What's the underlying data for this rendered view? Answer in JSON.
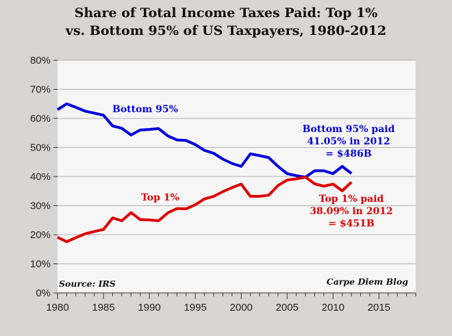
{
  "chart_data": {
    "type": "line",
    "title": "Share of Total Income Taxes Paid: Top 1% vs. Bottom 95% of US Taxpayers, 1980-2012",
    "title_lines": [
      "Share of Total Income Taxes Paid: Top 1%",
      "vs. Bottom 95% of US Taxpayers, 1980-2012"
    ],
    "xlabel": "",
    "ylabel": "",
    "xlim": [
      1980,
      2019
    ],
    "ylim": [
      0,
      80
    ],
    "xticks": [
      "1980",
      "1985",
      "1990",
      "1995",
      "2000",
      "2005",
      "2010",
      "2015"
    ],
    "yticks": [
      "0%",
      "10%",
      "20%",
      "30%",
      "40%",
      "50%",
      "60%",
      "70%",
      "80%"
    ],
    "grid": true,
    "x": [
      1980,
      1981,
      1982,
      1983,
      1984,
      1985,
      1986,
      1987,
      1988,
      1989,
      1990,
      1991,
      1992,
      1993,
      1994,
      1995,
      1996,
      1997,
      1998,
      1999,
      2000,
      2001,
      2002,
      2003,
      2004,
      2005,
      2006,
      2007,
      2008,
      2009,
      2010,
      2011,
      2012
    ],
    "series": [
      {
        "name": "Bottom 95%",
        "color": "#0000dd",
        "values": [
          63.0,
          65.0,
          63.8,
          62.5,
          61.8,
          61.1,
          57.4,
          56.6,
          54.3,
          56.0,
          56.2,
          56.5,
          54.0,
          52.6,
          52.4,
          51.0,
          49.0,
          48.0,
          46.0,
          44.5,
          43.5,
          47.8,
          47.2,
          46.5,
          43.5,
          41.0,
          40.3,
          39.8,
          42.0,
          42.0,
          41.0,
          43.5,
          41.05
        ]
      },
      {
        "name": "Top 1%",
        "color": "#dd0000",
        "values": [
          19.1,
          17.6,
          19.0,
          20.3,
          21.1,
          21.8,
          25.8,
          24.8,
          27.6,
          25.2,
          25.1,
          24.8,
          27.5,
          29.0,
          28.9,
          30.3,
          32.3,
          33.2,
          34.8,
          36.2,
          37.4,
          33.2,
          33.2,
          33.6,
          36.9,
          38.8,
          39.2,
          39.8,
          37.5,
          36.7,
          37.4,
          35.1,
          38.09
        ]
      }
    ],
    "annotations": {
      "bottom_label": "Bottom 95%",
      "top_label": "Top 1%",
      "bottom_note": [
        "Bottom 95% paid",
        "41.05% in 2012",
        "= $486B"
      ],
      "top_note": [
        "Top 1% paid",
        "38.09% in 2012",
        "= $451B"
      ],
      "source": "Source: IRS",
      "credit": "Carpe Diem Blog"
    }
  }
}
